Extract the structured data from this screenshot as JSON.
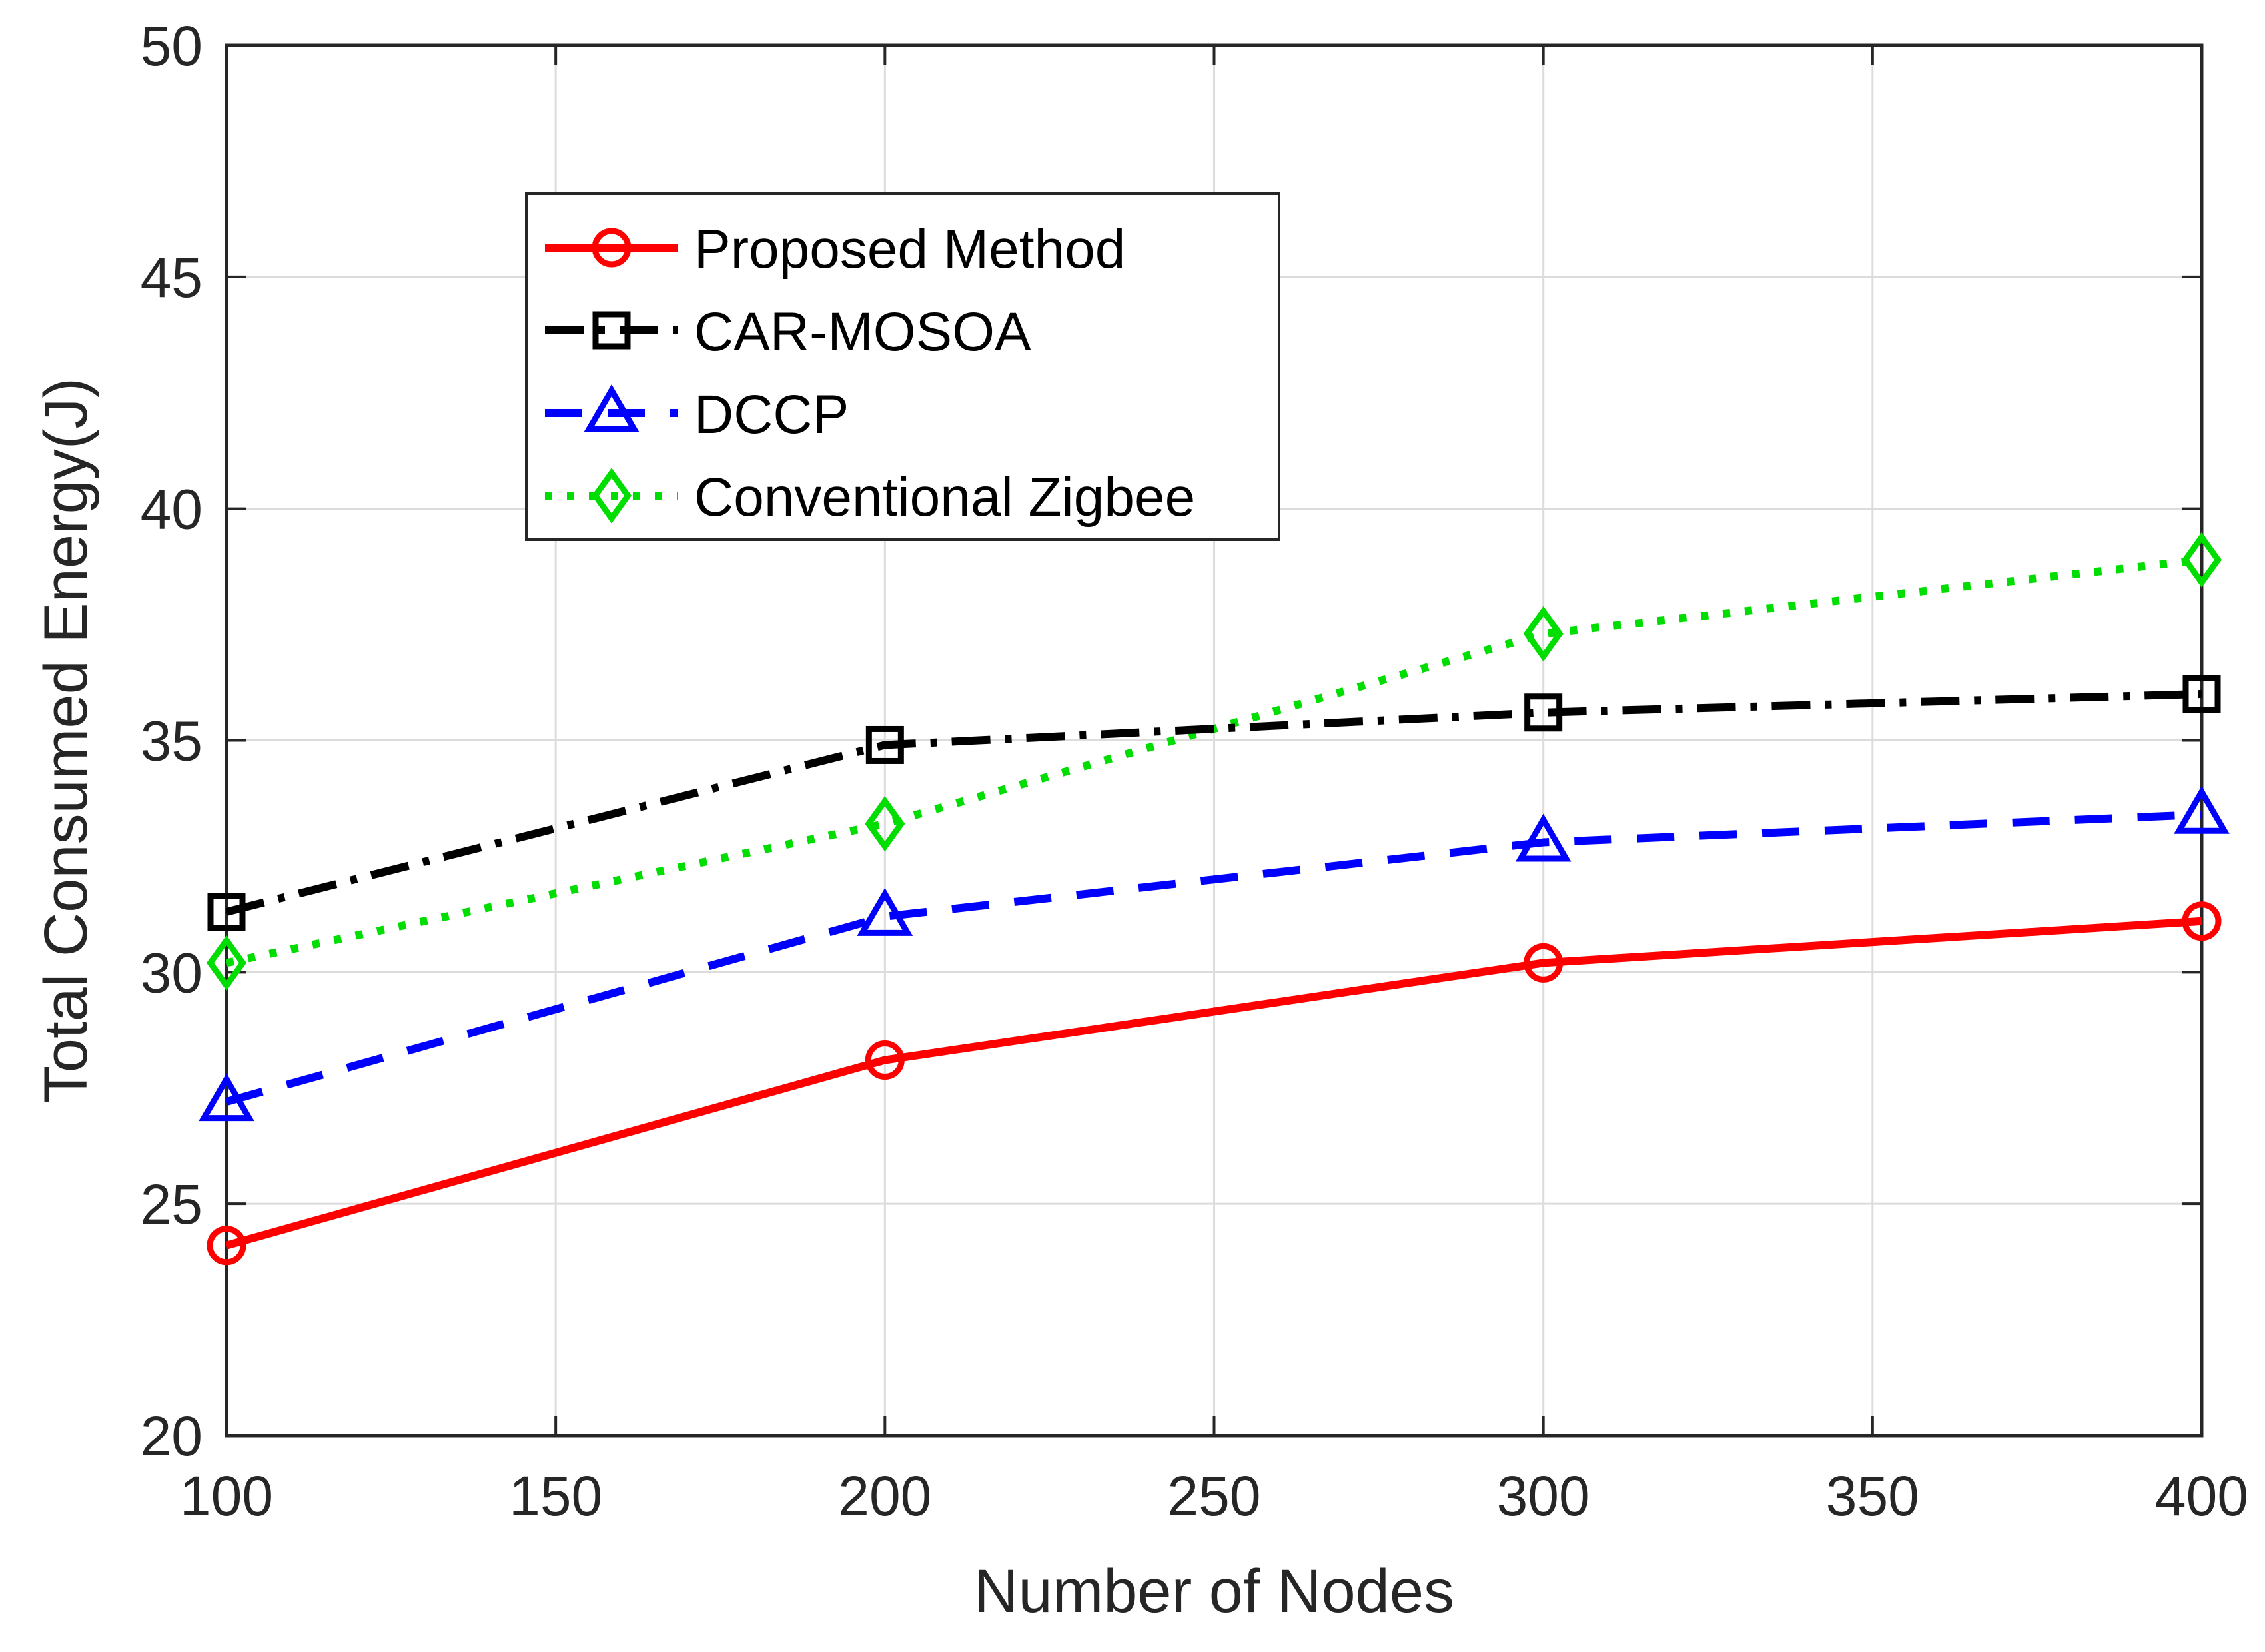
{
  "chart_data": {
    "type": "line",
    "title": "",
    "xlabel": "Number of Nodes",
    "ylabel": "Total Consumed Energy(J)",
    "x": [
      100,
      200,
      300,
      400
    ],
    "xlim": [
      100,
      400
    ],
    "ylim": [
      20,
      50
    ],
    "xticks": [
      100,
      150,
      200,
      250,
      300,
      350,
      400
    ],
    "yticks": [
      20,
      25,
      30,
      35,
      40,
      45,
      50
    ],
    "grid": true,
    "legend_position": "upper-left",
    "series": [
      {
        "name": "Proposed Method",
        "values": [
          24.1,
          28.1,
          30.2,
          31.1
        ],
        "color": "#ff0000",
        "line_style": "solid",
        "marker": "circle"
      },
      {
        "name": "CAR-MOSOA",
        "values": [
          31.3,
          34.9,
          35.6,
          36.0
        ],
        "color": "#000000",
        "line_style": "dash-dot",
        "marker": "square"
      },
      {
        "name": "DCCP",
        "values": [
          27.2,
          31.2,
          32.8,
          33.4
        ],
        "color": "#0000ff",
        "line_style": "dashed",
        "marker": "triangle"
      },
      {
        "name": "Conventional Zigbee",
        "values": [
          30.2,
          33.2,
          37.3,
          38.9
        ],
        "color": "#00dd00",
        "line_style": "dotted",
        "marker": "diamond"
      }
    ]
  }
}
